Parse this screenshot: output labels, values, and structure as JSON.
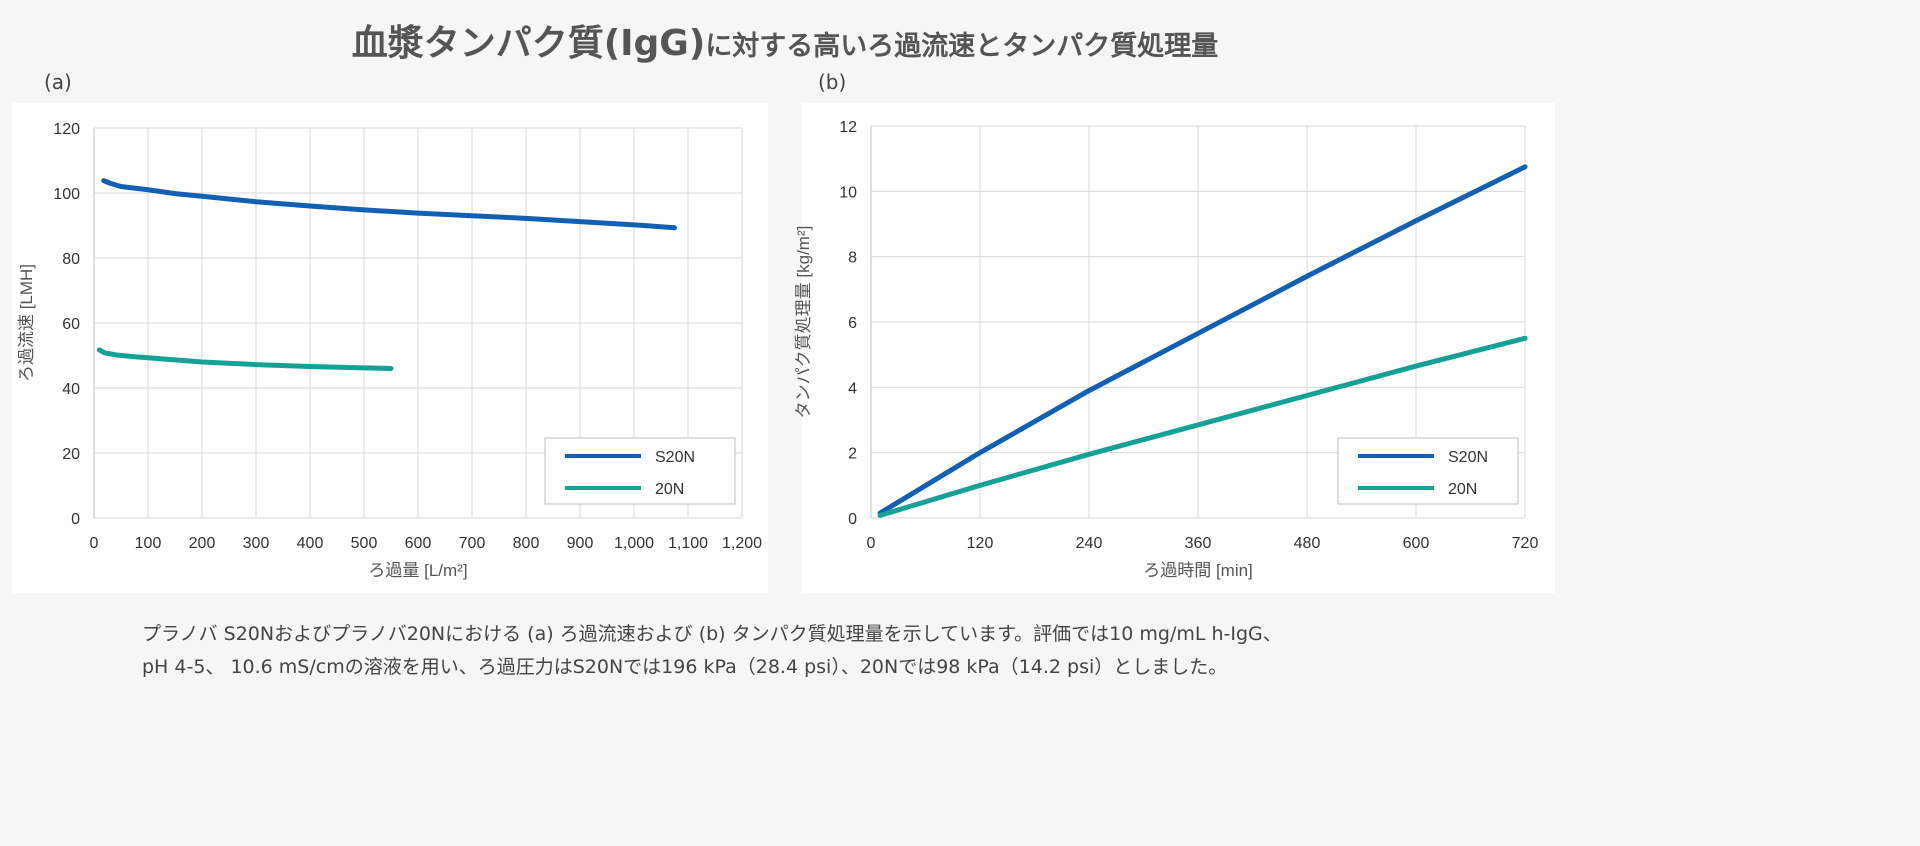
{
  "title": {
    "main": "血漿タンパク質(IgG)",
    "rest": "に対する高いろ過流速とタンパク質処理量"
  },
  "caption": [
    "プラノバ S20Nおよびプラノバ20Nにおける (a) ろ過流速および (b) タンパク質処理量を示しています。評価では10 mg/mL h-IgG、",
    "pH 4-5、 10.6 mS/cmの溶液を用い、ろ過圧力はS20Nでは196 kPa（28.4 psi）、20Nでは98 kPa（14.2 psi）としました。"
  ],
  "colors": {
    "S20N": "#1160b3",
    "20N": "#16a196"
  },
  "chart_data": [
    {
      "panel_label": "(a)",
      "type": "line",
      "xlabel": "ろ過量 [L/m²]",
      "ylabel": "ろ過流速 [LMH]",
      "xlim": [
        0,
        1200
      ],
      "ylim": [
        0,
        120
      ],
      "xticks": [
        0,
        100,
        200,
        300,
        400,
        500,
        600,
        700,
        800,
        900,
        1000,
        1100,
        1200
      ],
      "xtick_labels": [
        "0",
        "100",
        "200",
        "300",
        "400",
        "500",
        "600",
        "700",
        "800",
        "900",
        "1,000",
        "1,100",
        "1,200"
      ],
      "yticks": [
        0,
        20,
        40,
        60,
        80,
        100,
        120
      ],
      "grid": true,
      "legend": "bottom-right",
      "series": [
        {
          "name": "S20N",
          "x": [
            18,
            30,
            50,
            100,
            150,
            200,
            300,
            400,
            500,
            600,
            700,
            800,
            900,
            1000,
            1075
          ],
          "y": [
            103.8,
            103,
            102,
            101,
            99.8,
            99,
            97.3,
            96,
            94.8,
            93.8,
            93,
            92.2,
            91.2,
            90.2,
            89.3
          ]
        },
        {
          "name": "20N",
          "x": [
            10,
            20,
            40,
            75,
            100,
            200,
            300,
            400,
            500,
            550
          ],
          "y": [
            51.7,
            50.8,
            50.2,
            49.6,
            49.3,
            48,
            47.2,
            46.6,
            46.2,
            46
          ]
        }
      ]
    },
    {
      "panel_label": "(b)",
      "type": "line",
      "xlabel": "ろ過時間 [min]",
      "ylabel": "タンパク質処理量 [kg/m²]",
      "xlim": [
        0,
        720
      ],
      "ylim": [
        0,
        12
      ],
      "xticks": [
        0,
        120,
        240,
        360,
        480,
        600,
        720
      ],
      "xtick_labels": [
        "0",
        "120",
        "240",
        "360",
        "480",
        "600",
        "720"
      ],
      "yticks": [
        0,
        2,
        4,
        6,
        8,
        10,
        12
      ],
      "grid": true,
      "legend": "bottom-right",
      "series": [
        {
          "name": "S20N",
          "x": [
            10,
            120,
            240,
            360,
            480,
            600,
            720
          ],
          "y": [
            0.15,
            2.0,
            3.9,
            5.65,
            7.4,
            9.1,
            10.75
          ]
        },
        {
          "name": "20N",
          "x": [
            10,
            120,
            240,
            360,
            480,
            600,
            720
          ],
          "y": [
            0.08,
            1.0,
            1.95,
            2.85,
            3.75,
            4.65,
            5.5
          ]
        }
      ]
    }
  ]
}
